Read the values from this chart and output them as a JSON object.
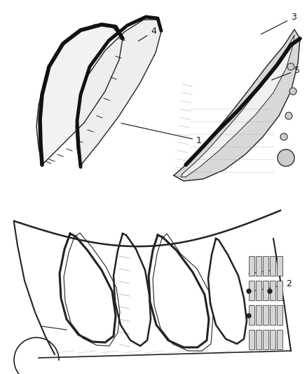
{
  "background_color": "#ffffff",
  "fig_width": 4.38,
  "fig_height": 5.33,
  "dpi": 100,
  "line_color": "#222222",
  "label_fontsize": 9
}
